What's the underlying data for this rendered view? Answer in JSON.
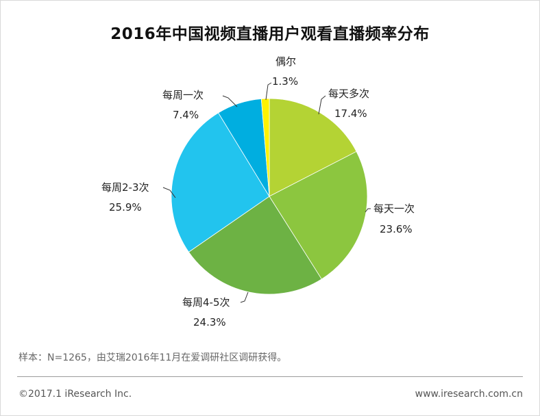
{
  "title": "2016年中国视频直播用户观看直播频率分布",
  "chart_data": {
    "type": "pie",
    "title": "2016年中国视频直播用户观看直播频率分布",
    "slices": [
      {
        "label": "每天多次",
        "value": 17.4,
        "value_label": "17.4%",
        "color": "#b4d334"
      },
      {
        "label": "每天一次",
        "value": 23.6,
        "value_label": "23.6%",
        "color": "#8cc63f"
      },
      {
        "label": "每周4-5次",
        "value": 24.3,
        "value_label": "24.3%",
        "color": "#6db244"
      },
      {
        "label": "每周2-3次",
        "value": 25.9,
        "value_label": "25.9%",
        "color": "#22c4ee"
      },
      {
        "label": "每周一次",
        "value": 7.4,
        "value_label": "7.4%",
        "color": "#00aee0"
      },
      {
        "label": "偶尔",
        "value": 1.3,
        "value_label": "1.3%",
        "color": "#fff200"
      }
    ],
    "start_angle_deg": 0,
    "direction": "clockwise"
  },
  "footer": {
    "note": "样本：N=1265，由艾瑞2016年11月在爱调研社区调研获得。",
    "copyright": "©2017.1 iResearch Inc.",
    "website": "www.iresearch.com.cn"
  }
}
